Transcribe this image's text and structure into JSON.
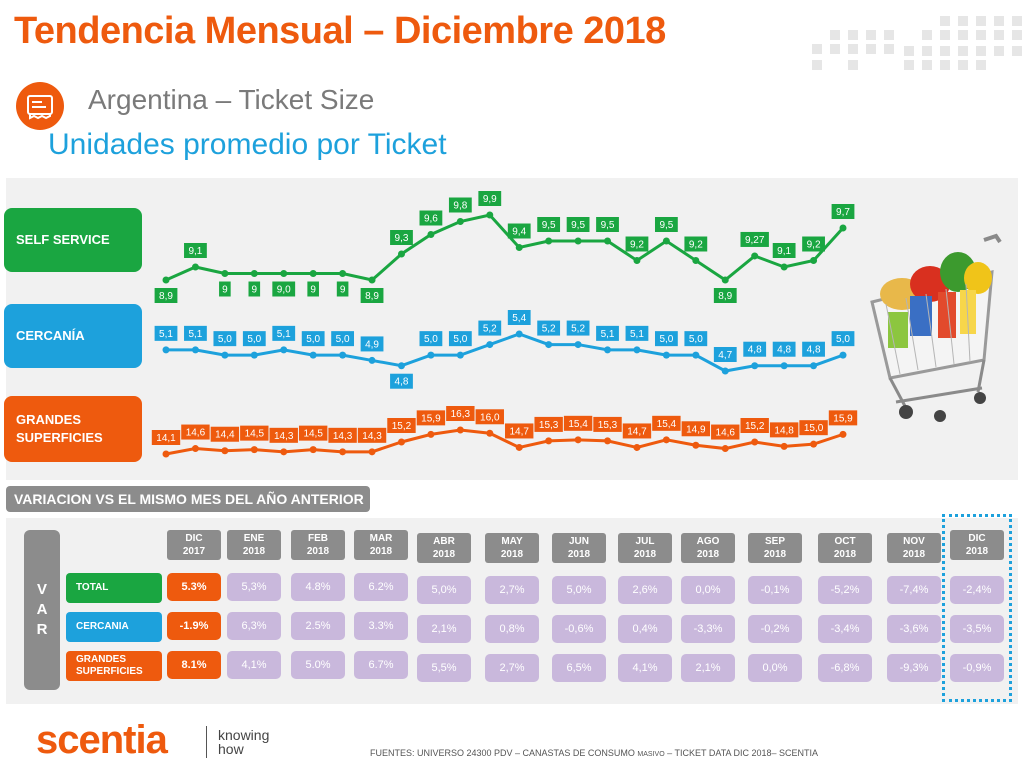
{
  "title": "Tendencia Mensual – Diciembre 2018",
  "subtitle": "Argentina – Ticket Size",
  "heading": "Unidades promedio por Ticket",
  "colors": {
    "orange": "#ee5a0e",
    "green": "#1aa641",
    "blue": "#1da1dc",
    "gray": "#8c8c8c",
    "lilac": "#c9b8dc"
  },
  "icons": {
    "header_icon": "receipt-icon",
    "image": "shopping-cart-image"
  },
  "row_labels": {
    "self_service": "SELF SERVICE",
    "cercania": "CERCANÍA",
    "grandes": [
      "GRANDES",
      "SUPERFICIES"
    ]
  },
  "chart_data": {
    "type": "line",
    "x": [
      "1",
      "2",
      "3",
      "4",
      "5",
      "6",
      "7",
      "8",
      "9",
      "10",
      "11",
      "12",
      "13",
      "14",
      "15",
      "16",
      "17",
      "18",
      "19",
      "20",
      "21",
      "22",
      "23",
      "24"
    ],
    "series": [
      {
        "name": "SELF SERVICE",
        "values": [
          8.9,
          9.1,
          9,
          9,
          9.0,
          9,
          9,
          8.9,
          9.3,
          9.6,
          9.8,
          9.9,
          9.4,
          9.5,
          9.5,
          9.5,
          9.2,
          9.5,
          9.2,
          8.9,
          9.27,
          9.1,
          9.2,
          9.7
        ],
        "labels": [
          "8,9",
          "9,1",
          "9",
          "9",
          "9,0",
          "9",
          "9",
          "8,9",
          "9,3",
          "9,6",
          "9,8",
          "9,9",
          "9,4",
          "9,5",
          "9,5",
          "9,5",
          "9,2",
          "9,5",
          "9,2",
          "8,9",
          "9,27",
          "9,1",
          "9,2",
          "9,7"
        ]
      },
      {
        "name": "CERCANÍA",
        "values": [
          5.1,
          5.1,
          5.0,
          5.0,
          5.1,
          5.0,
          5.0,
          4.9,
          4.8,
          5.0,
          5.0,
          5.2,
          5.4,
          5.2,
          5.2,
          5.1,
          5.1,
          5.0,
          5.0,
          4.7,
          4.8,
          4.8,
          4.8,
          5.0
        ],
        "labels": [
          "5,1",
          "5,1",
          "5,0",
          "5,0",
          "5,1",
          "5,0",
          "5,0",
          "4,9",
          "4,8",
          "5,0",
          "5,0",
          "5,2",
          "5,4",
          "5,2",
          "5,2",
          "5,1",
          "5,1",
          "5,0",
          "5,0",
          "4,7",
          "4,8",
          "4,8",
          "4,8",
          "5,0"
        ]
      },
      {
        "name": "GRANDES SUPERFICIES",
        "values": [
          14.1,
          14.6,
          14.4,
          14.5,
          14.3,
          14.5,
          14.3,
          14.3,
          15.2,
          15.9,
          16.3,
          16.0,
          14.7,
          15.3,
          15.4,
          15.3,
          14.7,
          15.4,
          14.9,
          14.6,
          15.2,
          14.8,
          15.0,
          15.9
        ],
        "labels": [
          "14,1",
          "14,6",
          "14,4",
          "14,5",
          "14,3",
          "14,5",
          "14,3",
          "14,3",
          "15,2",
          "15,9",
          "16,3",
          "16,0",
          "14,7",
          "15,3",
          "15,4",
          "15,3",
          "14,7",
          "15,4",
          "14,9",
          "14,6",
          "15,2",
          "14,8",
          "15,0",
          "15,9"
        ]
      }
    ],
    "label_above": [
      [
        false,
        true,
        false,
        false,
        false,
        false,
        false,
        false,
        true,
        true,
        true,
        true,
        true,
        true,
        true,
        true,
        true,
        true,
        true,
        false,
        true,
        true,
        true,
        true
      ],
      [
        true,
        true,
        true,
        true,
        true,
        true,
        true,
        true,
        false,
        true,
        true,
        true,
        true,
        true,
        true,
        true,
        true,
        true,
        true,
        true,
        true,
        true,
        true,
        true
      ],
      [
        true,
        true,
        true,
        true,
        true,
        true,
        true,
        true,
        true,
        true,
        true,
        true,
        true,
        true,
        true,
        true,
        true,
        true,
        true,
        true,
        true,
        true,
        true,
        true
      ]
    ]
  },
  "variation": {
    "header": "VARIACION VS EL MISMO MES DEL AÑO ANTERIOR",
    "side_label": [
      "V",
      "A",
      "R"
    ],
    "months": [
      [
        "DIC",
        "2017"
      ],
      [
        "ENE",
        "2018"
      ],
      [
        "FEB",
        "2018"
      ],
      [
        "MAR",
        "2018"
      ],
      [
        "ABR",
        "2018"
      ],
      [
        "MAY",
        "2018"
      ],
      [
        "JUN",
        "2018"
      ],
      [
        "JUL",
        "2018"
      ],
      [
        "AGO",
        "2018"
      ],
      [
        "SEP",
        "2018"
      ],
      [
        "OCT",
        "2018"
      ],
      [
        "NOV",
        "2018"
      ],
      [
        "DIC",
        "2018"
      ]
    ],
    "rows": [
      {
        "label": [
          "TOTAL"
        ],
        "values": [
          "5.3%",
          "5,3%",
          "4.8%",
          "6.2%",
          "5,0%",
          "2,7%",
          "5,0%",
          "2,6%",
          "0,0%",
          "-0,1%",
          "-5,2%",
          "-7,4%",
          "-2,4%"
        ]
      },
      {
        "label": [
          "CERCANIA"
        ],
        "values": [
          "-1.9%",
          "6,3%",
          "2.5%",
          "3.3%",
          "2,1%",
          "0,8%",
          "-0,6%",
          "0,4%",
          "-3,3%",
          "-0,2%",
          "-3,4%",
          "-3,6%",
          "-3,5%"
        ]
      },
      {
        "label": [
          "GRANDES",
          "SUPERFICIES"
        ],
        "values": [
          "8.1%",
          "4,1%",
          "5.0%",
          "6.7%",
          "5,5%",
          "2,7%",
          "6,5%",
          "4,1%",
          "2,1%",
          "0,0%",
          "-6,8%",
          "-9,3%",
          "-0,9%"
        ]
      }
    ]
  },
  "logo": {
    "name": "scentia",
    "tagline": [
      "knowing",
      "how"
    ]
  },
  "footer": {
    "main": "FUENTES: UNIVERSO 24300 PDV – CANASTAS DE CONSUMO",
    "small": "MASIVO",
    "end": "– TICKET DATA DIC 2018– SCENTIA"
  }
}
